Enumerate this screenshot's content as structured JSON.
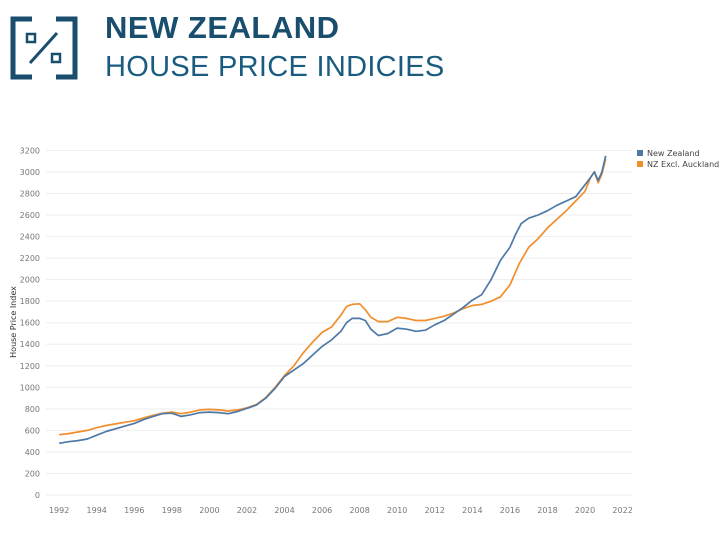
{
  "header": {
    "title": "NEW ZEALAND",
    "subtitle": "HOUSE PRICE INDICIES"
  },
  "colors": {
    "brand": "#1a4e6e",
    "series_nz": "#4e79a7",
    "series_excl": "#f28e2b"
  },
  "chart_data": {
    "type": "line",
    "title": "",
    "xlabel": "",
    "ylabel": "House Price Index",
    "xlim": [
      1991.3,
      2022.5
    ],
    "ylim": [
      0,
      3250
    ],
    "yticks": [
      0,
      200,
      400,
      600,
      800,
      1000,
      1200,
      1400,
      1600,
      1800,
      2000,
      2200,
      2400,
      2600,
      2800,
      3000,
      3200
    ],
    "xticks": [
      1992,
      1994,
      1996,
      1998,
      2000,
      2002,
      2004,
      2006,
      2008,
      2010,
      2012,
      2014,
      2016,
      2018,
      2020,
      2022
    ],
    "legend_position": "top-right",
    "series": [
      {
        "name": "New Zealand",
        "color": "#4e79a7",
        "points": [
          [
            1992.0,
            480
          ],
          [
            1992.5,
            495
          ],
          [
            1993.0,
            505
          ],
          [
            1993.5,
            520
          ],
          [
            1994.0,
            555
          ],
          [
            1994.5,
            590
          ],
          [
            1995.0,
            615
          ],
          [
            1995.5,
            640
          ],
          [
            1996.0,
            665
          ],
          [
            1996.5,
            700
          ],
          [
            1997.0,
            730
          ],
          [
            1997.5,
            755
          ],
          [
            1998.0,
            760
          ],
          [
            1998.5,
            730
          ],
          [
            1999.0,
            745
          ],
          [
            1999.5,
            765
          ],
          [
            2000.0,
            770
          ],
          [
            2000.5,
            765
          ],
          [
            2001.0,
            755
          ],
          [
            2001.5,
            775
          ],
          [
            2002.0,
            805
          ],
          [
            2002.5,
            835
          ],
          [
            2003.0,
            900
          ],
          [
            2003.5,
            990
          ],
          [
            2004.0,
            1100
          ],
          [
            2004.5,
            1160
          ],
          [
            2005.0,
            1220
          ],
          [
            2005.5,
            1300
          ],
          [
            2006.0,
            1380
          ],
          [
            2006.5,
            1440
          ],
          [
            2007.0,
            1520
          ],
          [
            2007.3,
            1600
          ],
          [
            2007.6,
            1640
          ],
          [
            2008.0,
            1640
          ],
          [
            2008.3,
            1620
          ],
          [
            2008.6,
            1540
          ],
          [
            2009.0,
            1480
          ],
          [
            2009.5,
            1500
          ],
          [
            2010.0,
            1550
          ],
          [
            2010.5,
            1540
          ],
          [
            2011.0,
            1520
          ],
          [
            2011.5,
            1530
          ],
          [
            2012.0,
            1580
          ],
          [
            2012.5,
            1620
          ],
          [
            2013.0,
            1680
          ],
          [
            2013.5,
            1740
          ],
          [
            2014.0,
            1810
          ],
          [
            2014.5,
            1860
          ],
          [
            2015.0,
            2000
          ],
          [
            2015.5,
            2180
          ],
          [
            2016.0,
            2300
          ],
          [
            2016.3,
            2420
          ],
          [
            2016.6,
            2520
          ],
          [
            2017.0,
            2570
          ],
          [
            2017.5,
            2600
          ],
          [
            2018.0,
            2640
          ],
          [
            2018.5,
            2690
          ],
          [
            2019.0,
            2730
          ],
          [
            2019.5,
            2770
          ],
          [
            2020.0,
            2880
          ],
          [
            2020.3,
            2950
          ],
          [
            2020.5,
            3000
          ],
          [
            2020.7,
            2920
          ],
          [
            2020.9,
            3000
          ],
          [
            2021.1,
            3150
          ]
        ]
      },
      {
        "name": "NZ Excl. Auckland",
        "color": "#f28e2b",
        "points": [
          [
            1992.0,
            560
          ],
          [
            1992.5,
            570
          ],
          [
            1993.0,
            585
          ],
          [
            1993.5,
            600
          ],
          [
            1994.0,
            625
          ],
          [
            1994.5,
            645
          ],
          [
            1995.0,
            660
          ],
          [
            1995.5,
            675
          ],
          [
            1996.0,
            690
          ],
          [
            1996.5,
            715
          ],
          [
            1997.0,
            740
          ],
          [
            1997.5,
            760
          ],
          [
            1998.0,
            770
          ],
          [
            1998.5,
            755
          ],
          [
            1999.0,
            770
          ],
          [
            1999.5,
            790
          ],
          [
            2000.0,
            795
          ],
          [
            2000.5,
            790
          ],
          [
            2001.0,
            780
          ],
          [
            2001.5,
            790
          ],
          [
            2002.0,
            810
          ],
          [
            2002.5,
            840
          ],
          [
            2003.0,
            905
          ],
          [
            2003.5,
            1000
          ],
          [
            2004.0,
            1110
          ],
          [
            2004.5,
            1200
          ],
          [
            2005.0,
            1320
          ],
          [
            2005.5,
            1420
          ],
          [
            2006.0,
            1510
          ],
          [
            2006.5,
            1560
          ],
          [
            2007.0,
            1670
          ],
          [
            2007.3,
            1750
          ],
          [
            2007.6,
            1770
          ],
          [
            2008.0,
            1775
          ],
          [
            2008.3,
            1720
          ],
          [
            2008.6,
            1650
          ],
          [
            2009.0,
            1610
          ],
          [
            2009.5,
            1610
          ],
          [
            2010.0,
            1650
          ],
          [
            2010.5,
            1640
          ],
          [
            2011.0,
            1620
          ],
          [
            2011.5,
            1620
          ],
          [
            2012.0,
            1640
          ],
          [
            2012.5,
            1660
          ],
          [
            2013.0,
            1690
          ],
          [
            2013.5,
            1730
          ],
          [
            2014.0,
            1760
          ],
          [
            2014.5,
            1770
          ],
          [
            2015.0,
            1800
          ],
          [
            2015.5,
            1840
          ],
          [
            2016.0,
            1950
          ],
          [
            2016.5,
            2150
          ],
          [
            2017.0,
            2300
          ],
          [
            2017.5,
            2380
          ],
          [
            2018.0,
            2480
          ],
          [
            2018.5,
            2560
          ],
          [
            2019.0,
            2640
          ],
          [
            2019.5,
            2730
          ],
          [
            2020.0,
            2820
          ],
          [
            2020.3,
            2950
          ],
          [
            2020.5,
            3000
          ],
          [
            2020.7,
            2900
          ],
          [
            2020.9,
            2980
          ],
          [
            2021.1,
            3120
          ]
        ]
      }
    ]
  }
}
